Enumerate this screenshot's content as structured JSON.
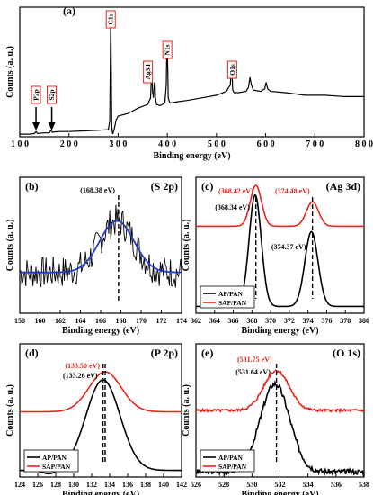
{
  "chart_data": [
    {
      "id": "a",
      "type": "line",
      "panel_label": "(a)",
      "xlabel": "Binding energy (eV)",
      "ylabel": "Counts (a. u.)",
      "xlim": [
        100,
        800
      ],
      "x_ticks": [
        "1 0 0",
        "2 0 0",
        "3 0 0",
        "4 0 0",
        "5 0 0",
        "6 0 0",
        "7 0 0",
        "8 0 0"
      ],
      "series": [
        {
          "color": "#000000",
          "x": [
            100,
            120,
            130,
            133,
            136,
            150,
            160,
            163,
            166,
            180,
            200,
            230,
            260,
            280,
            283,
            284,
            285,
            286,
            287,
            289,
            292,
            296,
            300,
            320,
            340,
            360,
            366,
            368,
            369,
            370,
            372,
            374,
            375,
            376,
            378,
            385,
            395,
            398,
            399,
            400,
            401,
            402,
            405,
            420,
            440,
            470,
            500,
            520,
            528,
            530,
            531,
            532,
            533,
            536,
            545,
            560,
            565,
            568,
            571,
            575,
            590,
            598,
            601,
            604,
            610,
            640,
            680,
            720,
            760,
            800
          ],
          "y": [
            0.02,
            0.02,
            0.025,
            0.04,
            0.025,
            0.03,
            0.03,
            0.05,
            0.035,
            0.04,
            0.04,
            0.045,
            0.05,
            0.055,
            0.12,
            0.55,
            0.96,
            0.5,
            0.08,
            0.02,
            0.06,
            0.13,
            0.16,
            0.18,
            0.22,
            0.25,
            0.3,
            0.48,
            0.47,
            0.35,
            0.3,
            0.42,
            0.41,
            0.3,
            0.25,
            0.24,
            0.26,
            0.4,
            0.68,
            0.7,
            0.5,
            0.3,
            0.26,
            0.27,
            0.28,
            0.3,
            0.32,
            0.35,
            0.4,
            0.52,
            0.57,
            0.45,
            0.36,
            0.34,
            0.34,
            0.35,
            0.38,
            0.46,
            0.4,
            0.36,
            0.35,
            0.37,
            0.42,
            0.37,
            0.35,
            0.34,
            0.32,
            0.32,
            0.31,
            0.31
          ]
        }
      ],
      "annotations": [
        {
          "label": "P2p",
          "x": 133
        },
        {
          "label": "S2p",
          "x": 165
        },
        {
          "label": "C1s",
          "x": 285
        },
        {
          "label": "Ag3d",
          "x": 368
        },
        {
          "label": "N1s",
          "x": 400
        },
        {
          "label": "O1s",
          "x": 532
        }
      ]
    },
    {
      "id": "b",
      "type": "line",
      "panel_label": "(b)",
      "title": "(S 2p)",
      "xlabel": "Binding energy (eV)",
      "ylabel": "Counts (a. u.)",
      "xlim": [
        158,
        175
      ],
      "x_ticks": [
        "158",
        "160",
        "162",
        "164",
        "166",
        "168",
        "170",
        "172",
        "174"
      ],
      "peak_label": "(168.38 eV)",
      "peak_x": 168.38,
      "series": [
        {
          "name": "raw",
          "color": "#000000",
          "seed": 7,
          "center": 168.2,
          "width": 1.8,
          "base": 0.3,
          "amp": 0.38,
          "noise": 0.12
        },
        {
          "name": "fit",
          "color": "#1f3cc8",
          "center": 168.2,
          "width": 1.8,
          "base": 0.3,
          "amp": 0.38
        }
      ]
    },
    {
      "id": "c",
      "type": "line",
      "panel_label": "(c)",
      "title": "(Ag 3d)",
      "xlabel": "Binding energy (eV)",
      "ylabel": "Counts (a. u.)",
      "xlim": [
        362,
        380
      ],
      "x_ticks": [
        "362",
        "364",
        "366",
        "368",
        "370",
        "372",
        "374",
        "376",
        "378",
        "380"
      ],
      "legend": [
        "AP/PAN",
        "SAP/PAN"
      ],
      "legend_position": "bottom-left",
      "peak_labels": [
        {
          "text": "(368.42 eV)",
          "x": 368.42,
          "color": "#e8231a"
        },
        {
          "text": "(374.48 eV)",
          "x": 374.48,
          "color": "#e8231a"
        },
        {
          "text": "(368.34 eV)",
          "x": 368.34,
          "color": "#000000"
        },
        {
          "text": "(374.37 eV)",
          "x": 374.37,
          "color": "#000000"
        }
      ],
      "series": [
        {
          "name": "AP/PAN",
          "color": "#000000",
          "base": 0.05,
          "peaks": [
            [
              368.34,
              0.82,
              0.65
            ],
            [
              374.37,
              0.55,
              0.7
            ]
          ]
        },
        {
          "name": "SAP/PAN",
          "color": "#e8231a",
          "base": 0.64,
          "peaks": [
            [
              368.42,
              0.3,
              0.6
            ],
            [
              374.48,
              0.18,
              0.65
            ]
          ]
        }
      ]
    },
    {
      "id": "d",
      "type": "line",
      "panel_label": "(d)",
      "title": "(P 2p)",
      "xlabel": "Binding energy (eV)",
      "ylabel": "Counts (a. u.)",
      "xlim": [
        124,
        142
      ],
      "x_ticks": [
        "124",
        "126",
        "128",
        "130",
        "132",
        "134",
        "136",
        "138",
        "140",
        "142"
      ],
      "legend": [
        "AP/PAN",
        "SAP/PAN"
      ],
      "legend_position": "bottom-left",
      "peak_labels": [
        {
          "text": "(133.50 eV)",
          "x": 133.5,
          "color": "#e8231a"
        },
        {
          "text": "(133.26 eV)",
          "x": 133.26,
          "color": "#000000"
        }
      ],
      "series": [
        {
          "name": "AP/PAN",
          "color": "#000000",
          "base": 0.05,
          "peaks": [
            [
              133.26,
              0.68,
              1.9
            ],
            [
              127.4,
              -0.03,
              0.8
            ]
          ]
        },
        {
          "name": "SAP/PAN",
          "color": "#e8231a",
          "base": 0.49,
          "peaks": [
            [
              133.5,
              0.3,
              1.8
            ]
          ]
        }
      ]
    },
    {
      "id": "e",
      "type": "line",
      "panel_label": "(e)",
      "title": "(O 1s)",
      "xlabel": "Binding energy (eV)",
      "ylabel": "Counts (a. u.)",
      "xlim": [
        526,
        538
      ],
      "x_ticks": [
        "526",
        "528",
        "530",
        "532",
        "534",
        "536",
        "538"
      ],
      "legend": [
        "AP/PAN",
        "SAP/PAN"
      ],
      "legend_position": "bottom-left",
      "peak_labels": [
        {
          "text": "(531.75 eV)",
          "x": 531.75,
          "color": "#e8231a"
        },
        {
          "text": "(531.64 eV)",
          "x": 531.64,
          "color": "#000000"
        }
      ],
      "series": [
        {
          "name": "AP/PAN",
          "color": "#000000",
          "base": 0.04,
          "noise": 0.02,
          "seed": 3,
          "peaks": [
            [
              531.64,
              0.66,
              1.05
            ]
          ]
        },
        {
          "name": "SAP/PAN",
          "color": "#e8231a",
          "base": 0.5,
          "noise": 0.01,
          "seed": 5,
          "peaks": [
            [
              531.75,
              0.3,
              0.9
            ]
          ]
        }
      ]
    }
  ]
}
